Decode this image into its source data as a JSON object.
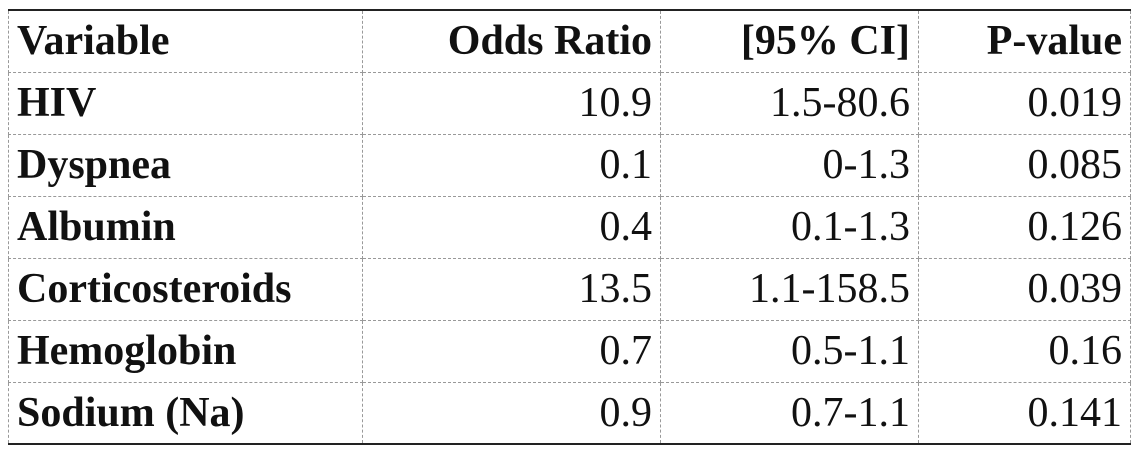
{
  "table": {
    "header": [
      "Variable",
      "Odds Ratio",
      "[95% CI]",
      "P-value"
    ],
    "rows": [
      [
        "HIV",
        "10.9",
        "1.5-80.6",
        "0.019"
      ],
      [
        "Dyspnea",
        "0.1",
        "0-1.3",
        "0.085"
      ],
      [
        "Albumin",
        "0.4",
        "0.1-1.3",
        "0.126"
      ],
      [
        "Corticosteroids",
        "13.5",
        "1.1-158.5",
        "0.039"
      ],
      [
        "Hemoglobin",
        "0.7",
        "0.5-1.1",
        "0.16"
      ],
      [
        "Sodium (Na)",
        "0.9",
        "0.7-1.1",
        "0.141"
      ]
    ]
  }
}
